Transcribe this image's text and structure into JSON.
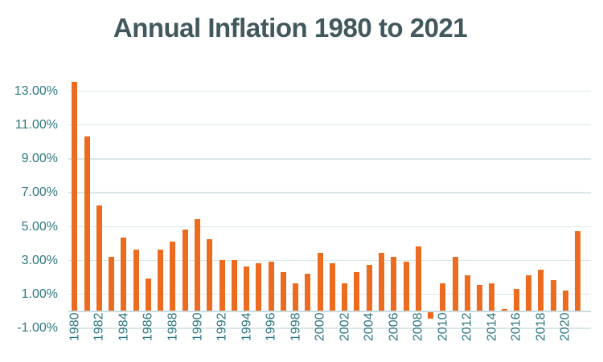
{
  "chart_data": {
    "type": "bar",
    "title": "Annual Inflation 1980 to 2021",
    "categories": [
      1980,
      1981,
      1982,
      1983,
      1984,
      1985,
      1986,
      1987,
      1988,
      1989,
      1990,
      1991,
      1992,
      1993,
      1994,
      1995,
      1996,
      1997,
      1998,
      1999,
      2000,
      2001,
      2002,
      2003,
      2004,
      2005,
      2006,
      2007,
      2008,
      2009,
      2010,
      2011,
      2012,
      2013,
      2014,
      2015,
      2016,
      2017,
      2018,
      2019,
      2020,
      2021
    ],
    "values": [
      13.5,
      10.3,
      6.2,
      3.2,
      4.3,
      3.6,
      1.9,
      3.6,
      4.1,
      4.8,
      5.4,
      4.2,
      3.0,
      3.0,
      2.6,
      2.8,
      2.9,
      2.3,
      1.6,
      2.2,
      3.4,
      2.8,
      1.6,
      2.3,
      2.7,
      3.4,
      3.2,
      2.9,
      3.8,
      -0.4,
      1.6,
      3.2,
      2.1,
      1.5,
      1.6,
      0.1,
      1.3,
      2.1,
      2.4,
      1.8,
      1.2,
      4.7
    ],
    "xlabel": "",
    "ylabel": "",
    "ylim": [
      -1.0,
      13.0
    ],
    "ytick_values": [
      13,
      11,
      9,
      7,
      5,
      3,
      1,
      -1
    ],
    "ytick_labels": [
      "13.00%",
      "11.00%",
      "9.00%",
      "7.00%",
      "5.00%",
      "3.00%",
      "1.00%",
      "-1.00%"
    ],
    "xtick_every": 2,
    "xtick_labels": [
      "1980",
      "1982",
      "1984",
      "1986",
      "1988",
      "1990",
      "1992",
      "1994",
      "1996",
      "1998",
      "2000",
      "2002",
      "2004",
      "2006",
      "2008",
      "2010",
      "2012",
      "2014",
      "2016",
      "2018",
      "2020"
    ],
    "grid": true,
    "legend": false,
    "colors": {
      "bar": "#ED6B1E",
      "gridline": "#D9E7E9",
      "axis_line": "#C8DCDF",
      "tick_label": "#2E7882",
      "title": "#41585E",
      "background": "#FFFFFF"
    }
  }
}
